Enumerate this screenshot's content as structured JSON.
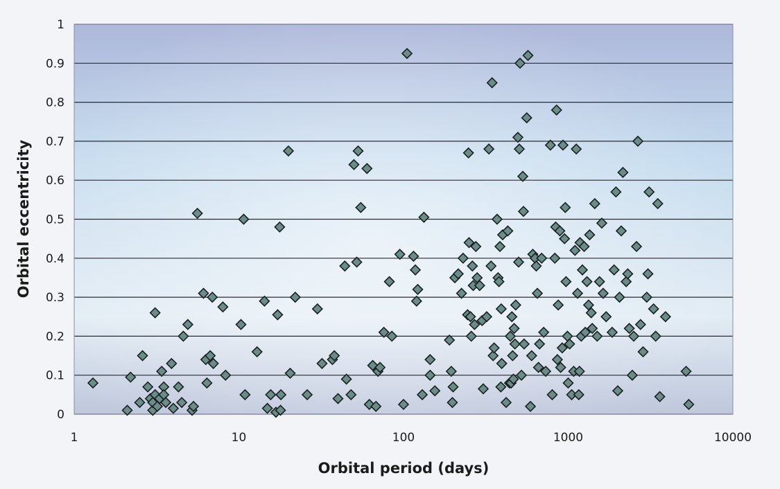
{
  "chart_data": {
    "type": "scatter",
    "xlabel": "Orbital period (days)",
    "ylabel": "Orbital eccentricity",
    "x_scale": "log",
    "xlim": [
      1,
      10000
    ],
    "ylim": [
      0,
      1
    ],
    "x_ticks": [
      "1",
      "10",
      "100",
      "1000",
      "10000"
    ],
    "y_ticks": [
      "0",
      "0.1",
      "0.2",
      "0.3",
      "0.4",
      "0.5",
      "0.6",
      "0.7",
      "0.8",
      "0.9",
      "1"
    ],
    "grid": "horizontal",
    "legend": "none",
    "marker": "diamond",
    "colors": {
      "marker_fill": "#6d8b8a",
      "marker_edge": "#16211f",
      "grid": "#2b2b33"
    },
    "points": [
      [
        1.3,
        0.08
      ],
      [
        2.1,
        0.01
      ],
      [
        2.2,
        0.095
      ],
      [
        2.5,
        0.03
      ],
      [
        2.6,
        0.15
      ],
      [
        2.8,
        0.07
      ],
      [
        2.9,
        0.04
      ],
      [
        3.0,
        0.01
      ],
      [
        3.0,
        0.03
      ],
      [
        3.1,
        0.05
      ],
      [
        3.1,
        0.26
      ],
      [
        3.2,
        0.02
      ],
      [
        3.3,
        0.04
      ],
      [
        3.4,
        0.11
      ],
      [
        3.5,
        0.07
      ],
      [
        3.5,
        0.05
      ],
      [
        3.6,
        0.03
      ],
      [
        3.9,
        0.13
      ],
      [
        4.0,
        0.015
      ],
      [
        4.3,
        0.07
      ],
      [
        4.5,
        0.03
      ],
      [
        4.6,
        0.2
      ],
      [
        4.9,
        0.23
      ],
      [
        5.2,
        0.01
      ],
      [
        5.3,
        0.02
      ],
      [
        5.6,
        0.515
      ],
      [
        6.1,
        0.31
      ],
      [
        6.3,
        0.14
      ],
      [
        6.4,
        0.08
      ],
      [
        6.7,
        0.15
      ],
      [
        6.9,
        0.3
      ],
      [
        7.0,
        0.13
      ],
      [
        8.0,
        0.275
      ],
      [
        8.3,
        0.1
      ],
      [
        10.3,
        0.23
      ],
      [
        10.7,
        0.5
      ],
      [
        10.9,
        0.05
      ],
      [
        12.9,
        0.16
      ],
      [
        14.3,
        0.29
      ],
      [
        14.9,
        0.015
      ],
      [
        15.6,
        0.05
      ],
      [
        16.8,
        0.005
      ],
      [
        17.2,
        0.255
      ],
      [
        17.7,
        0.48
      ],
      [
        17.9,
        0.01
      ],
      [
        18.0,
        0.05
      ],
      [
        20.0,
        0.675
      ],
      [
        20.5,
        0.105
      ],
      [
        22.0,
        0.3
      ],
      [
        26.0,
        0.05
      ],
      [
        30.0,
        0.27
      ],
      [
        32.0,
        0.13
      ],
      [
        37.0,
        0.14
      ],
      [
        38.0,
        0.15
      ],
      [
        40.0,
        0.04
      ],
      [
        44.0,
        0.38
      ],
      [
        45.0,
        0.09
      ],
      [
        48.0,
        0.05
      ],
      [
        50.0,
        0.64
      ],
      [
        52.0,
        0.39
      ],
      [
        53.0,
        0.675
      ],
      [
        55.0,
        0.53
      ],
      [
        60.0,
        0.63
      ],
      [
        62.0,
        0.025
      ],
      [
        65.0,
        0.125
      ],
      [
        68.0,
        0.02
      ],
      [
        70.0,
        0.11
      ],
      [
        72.0,
        0.12
      ],
      [
        76.0,
        0.21
      ],
      [
        82.0,
        0.34
      ],
      [
        85.0,
        0.2
      ],
      [
        95.0,
        0.41
      ],
      [
        100.0,
        0.025
      ],
      [
        105.0,
        0.925
      ],
      [
        115.0,
        0.405
      ],
      [
        118.0,
        0.37
      ],
      [
        120.0,
        0.29
      ],
      [
        122.0,
        0.32
      ],
      [
        130.0,
        0.05
      ],
      [
        133.0,
        0.505
      ],
      [
        145.0,
        0.14
      ],
      [
        145.0,
        0.1
      ],
      [
        155.0,
        0.06
      ],
      [
        190.0,
        0.19
      ],
      [
        195.0,
        0.11
      ],
      [
        198.0,
        0.03
      ],
      [
        200.0,
        0.07
      ],
      [
        205.0,
        0.35
      ],
      [
        215.0,
        0.36
      ],
      [
        225.0,
        0.31
      ],
      [
        230.0,
        0.4
      ],
      [
        245.0,
        0.255
      ],
      [
        248.0,
        0.67
      ],
      [
        250.0,
        0.44
      ],
      [
        255.0,
        0.25
      ],
      [
        258.0,
        0.2
      ],
      [
        262.0,
        0.38
      ],
      [
        265.0,
        0.33
      ],
      [
        270.0,
        0.23
      ],
      [
        275.0,
        0.43
      ],
      [
        280.0,
        0.35
      ],
      [
        290.0,
        0.33
      ],
      [
        300.0,
        0.24
      ],
      [
        305.0,
        0.065
      ],
      [
        320.0,
        0.25
      ],
      [
        330.0,
        0.68
      ],
      [
        340.0,
        0.38
      ],
      [
        345.0,
        0.85
      ],
      [
        350.0,
        0.15
      ],
      [
        355.0,
        0.17
      ],
      [
        370.0,
        0.5
      ],
      [
        375.0,
        0.35
      ],
      [
        380.0,
        0.34
      ],
      [
        385.0,
        0.43
      ],
      [
        390.0,
        0.07
      ],
      [
        392.0,
        0.27
      ],
      [
        395.0,
        0.13
      ],
      [
        400.0,
        0.46
      ],
      [
        420.0,
        0.03
      ],
      [
        430.0,
        0.47
      ],
      [
        440.0,
        0.08
      ],
      [
        445.0,
        0.2
      ],
      [
        450.0,
        0.08
      ],
      [
        455.0,
        0.25
      ],
      [
        460.0,
        0.15
      ],
      [
        465.0,
        0.09
      ],
      [
        470.0,
        0.22
      ],
      [
        475.0,
        0.18
      ],
      [
        480.0,
        0.28
      ],
      [
        495.0,
        0.71
      ],
      [
        500.0,
        0.39
      ],
      [
        505.0,
        0.68
      ],
      [
        510.0,
        0.9
      ],
      [
        520.0,
        0.1
      ],
      [
        530.0,
        0.61
      ],
      [
        535.0,
        0.52
      ],
      [
        540.0,
        0.18
      ],
      [
        560.0,
        0.76
      ],
      [
        570.0,
        0.92
      ],
      [
        590.0,
        0.02
      ],
      [
        600.0,
        0.15
      ],
      [
        610.0,
        0.41
      ],
      [
        630.0,
        0.4
      ],
      [
        640.0,
        0.38
      ],
      [
        650.0,
        0.31
      ],
      [
        660.0,
        0.12
      ],
      [
        670.0,
        0.18
      ],
      [
        690.0,
        0.4
      ],
      [
        710.0,
        0.21
      ],
      [
        730.0,
        0.11
      ],
      [
        780.0,
        0.69
      ],
      [
        800.0,
        0.05
      ],
      [
        830.0,
        0.4
      ],
      [
        840.0,
        0.48
      ],
      [
        850.0,
        0.78
      ],
      [
        860.0,
        0.14
      ],
      [
        870.0,
        0.28
      ],
      [
        890.0,
        0.47
      ],
      [
        900.0,
        0.12
      ],
      [
        920.0,
        0.17
      ],
      [
        930.0,
        0.69
      ],
      [
        950.0,
        0.45
      ],
      [
        960.0,
        0.53
      ],
      [
        970.0,
        0.34
      ],
      [
        990.0,
        0.2
      ],
      [
        1000.0,
        0.08
      ],
      [
        1020.0,
        0.18
      ],
      [
        1050.0,
        0.05
      ],
      [
        1080.0,
        0.11
      ],
      [
        1100.0,
        0.42
      ],
      [
        1120.0,
        0.68
      ],
      [
        1140.0,
        0.31
      ],
      [
        1160.0,
        0.05
      ],
      [
        1170.0,
        0.11
      ],
      [
        1180.0,
        0.44
      ],
      [
        1200.0,
        0.2
      ],
      [
        1220.0,
        0.37
      ],
      [
        1250.0,
        0.43
      ],
      [
        1270.0,
        0.21
      ],
      [
        1300.0,
        0.34
      ],
      [
        1330.0,
        0.28
      ],
      [
        1350.0,
        0.46
      ],
      [
        1380.0,
        0.26
      ],
      [
        1400.0,
        0.22
      ],
      [
        1450.0,
        0.54
      ],
      [
        1500.0,
        0.2
      ],
      [
        1550.0,
        0.34
      ],
      [
        1600.0,
        0.49
      ],
      [
        1630.0,
        0.31
      ],
      [
        1700.0,
        0.25
      ],
      [
        1850.0,
        0.21
      ],
      [
        1900.0,
        0.37
      ],
      [
        1950.0,
        0.57
      ],
      [
        2000.0,
        0.06
      ],
      [
        2050.0,
        0.3
      ],
      [
        2100.0,
        0.47
      ],
      [
        2150.0,
        0.62
      ],
      [
        2250.0,
        0.34
      ],
      [
        2300.0,
        0.36
      ],
      [
        2350.0,
        0.22
      ],
      [
        2450.0,
        0.1
      ],
      [
        2500.0,
        0.2
      ],
      [
        2600.0,
        0.43
      ],
      [
        2650.0,
        0.7
      ],
      [
        2750.0,
        0.23
      ],
      [
        2850.0,
        0.16
      ],
      [
        3000.0,
        0.3
      ],
      [
        3050.0,
        0.36
      ],
      [
        3100.0,
        0.57
      ],
      [
        3300.0,
        0.27
      ],
      [
        3400.0,
        0.2
      ],
      [
        3500.0,
        0.54
      ],
      [
        3600.0,
        0.045
      ],
      [
        3900.0,
        0.25
      ],
      [
        5200.0,
        0.11
      ],
      [
        5400.0,
        0.025
      ]
    ]
  }
}
